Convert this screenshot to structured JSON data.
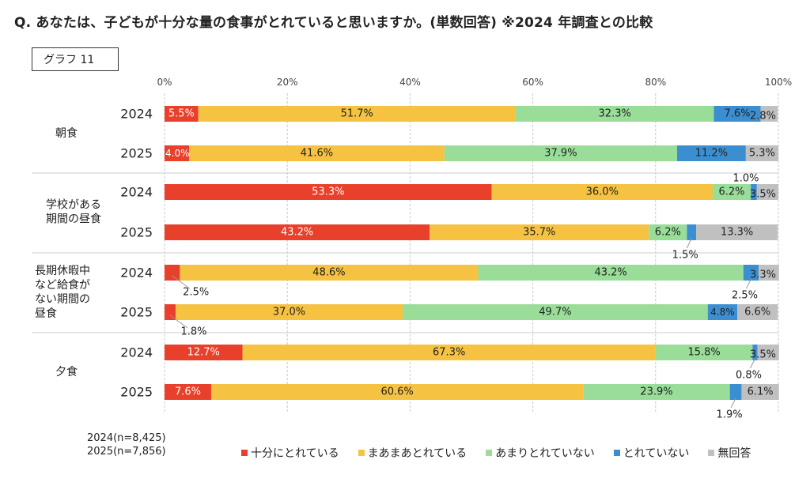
{
  "title": "Q. あなたは、子どもが十分な量の食事がとれていると思いますか。(単数回答) ※2024 年調査との比較",
  "graph_label": "グラフ 11",
  "sample_sizes": [
    "2024(n=8,425)",
    "2025(n=7,856)"
  ],
  "colors": [
    "#e8402a",
    "#f5c242",
    "#99dd99",
    "#3b8fd1",
    "#c0c0c0"
  ],
  "chart_data": {
    "type": "bar",
    "orientation": "horizontal",
    "stacked": true,
    "percent": true,
    "xlim": [
      0,
      100
    ],
    "x_ticks": [
      "0%",
      "20%",
      "40%",
      "60%",
      "80%",
      "100%"
    ],
    "grid": true,
    "legend_position": "bottom",
    "series": [
      {
        "name": "十分にとれている"
      },
      {
        "name": "まあまあとれている"
      },
      {
        "name": "あまりとれていない"
      },
      {
        "name": "とれていない"
      },
      {
        "name": "無回答"
      }
    ],
    "groups": [
      {
        "label": "朝食",
        "rows": [
          {
            "year": "2024",
            "values": [
              5.5,
              51.7,
              32.3,
              7.6,
              2.8
            ]
          },
          {
            "year": "2025",
            "values": [
              4.0,
              41.6,
              37.9,
              11.2,
              5.3
            ]
          }
        ]
      },
      {
        "label": "学校がある期間の昼食",
        "rows": [
          {
            "year": "2024",
            "values": [
              53.3,
              36.0,
              6.2,
              1.0,
              3.5
            ]
          },
          {
            "year": "2025",
            "values": [
              43.2,
              35.7,
              6.2,
              1.5,
              13.3
            ]
          }
        ]
      },
      {
        "label": "長期休暇中など給食がない期間の昼食",
        "rows": [
          {
            "year": "2024",
            "values": [
              2.5,
              48.6,
              43.2,
              2.5,
              3.3
            ]
          },
          {
            "year": "2025",
            "values": [
              1.8,
              37.0,
              49.7,
              4.8,
              6.6
            ]
          }
        ]
      },
      {
        "label": "夕食",
        "rows": [
          {
            "year": "2024",
            "values": [
              12.7,
              67.3,
              15.8,
              0.8,
              3.5
            ]
          },
          {
            "year": "2025",
            "values": [
              7.6,
              60.6,
              23.9,
              1.9,
              6.1
            ]
          }
        ]
      }
    ]
  }
}
